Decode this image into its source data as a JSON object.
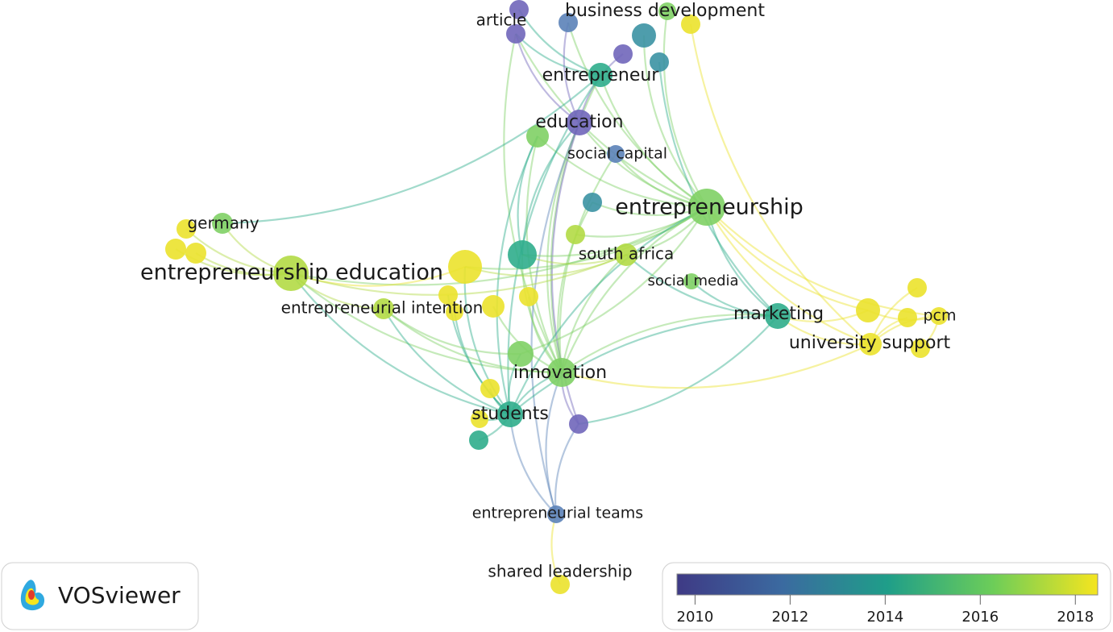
{
  "nodes": [
    {
      "label": "article"
    },
    {
      "label": "business development"
    },
    {
      "label": "entrepreneur"
    },
    {
      "label": "education"
    },
    {
      "label": "social capital"
    },
    {
      "label": "entrepreneurship"
    },
    {
      "label": "germany"
    },
    {
      "label": "entrepreneurship education"
    },
    {
      "label": "south africa"
    },
    {
      "label": "social media"
    },
    {
      "label": "entrepreneurial intention"
    },
    {
      "label": "marketing"
    },
    {
      "label": "pcm"
    },
    {
      "label": "university support"
    },
    {
      "label": "innovation"
    },
    {
      "label": "students"
    },
    {
      "label": "entrepreneurial teams"
    },
    {
      "label": "shared leadership"
    }
  ],
  "legend": {
    "logo": "VOSviewer",
    "colorbar": {
      "range": [
        2009.62,
        2018.47
      ],
      "ticks": [
        2010,
        2012,
        2014,
        2016,
        2018
      ]
    }
  }
}
